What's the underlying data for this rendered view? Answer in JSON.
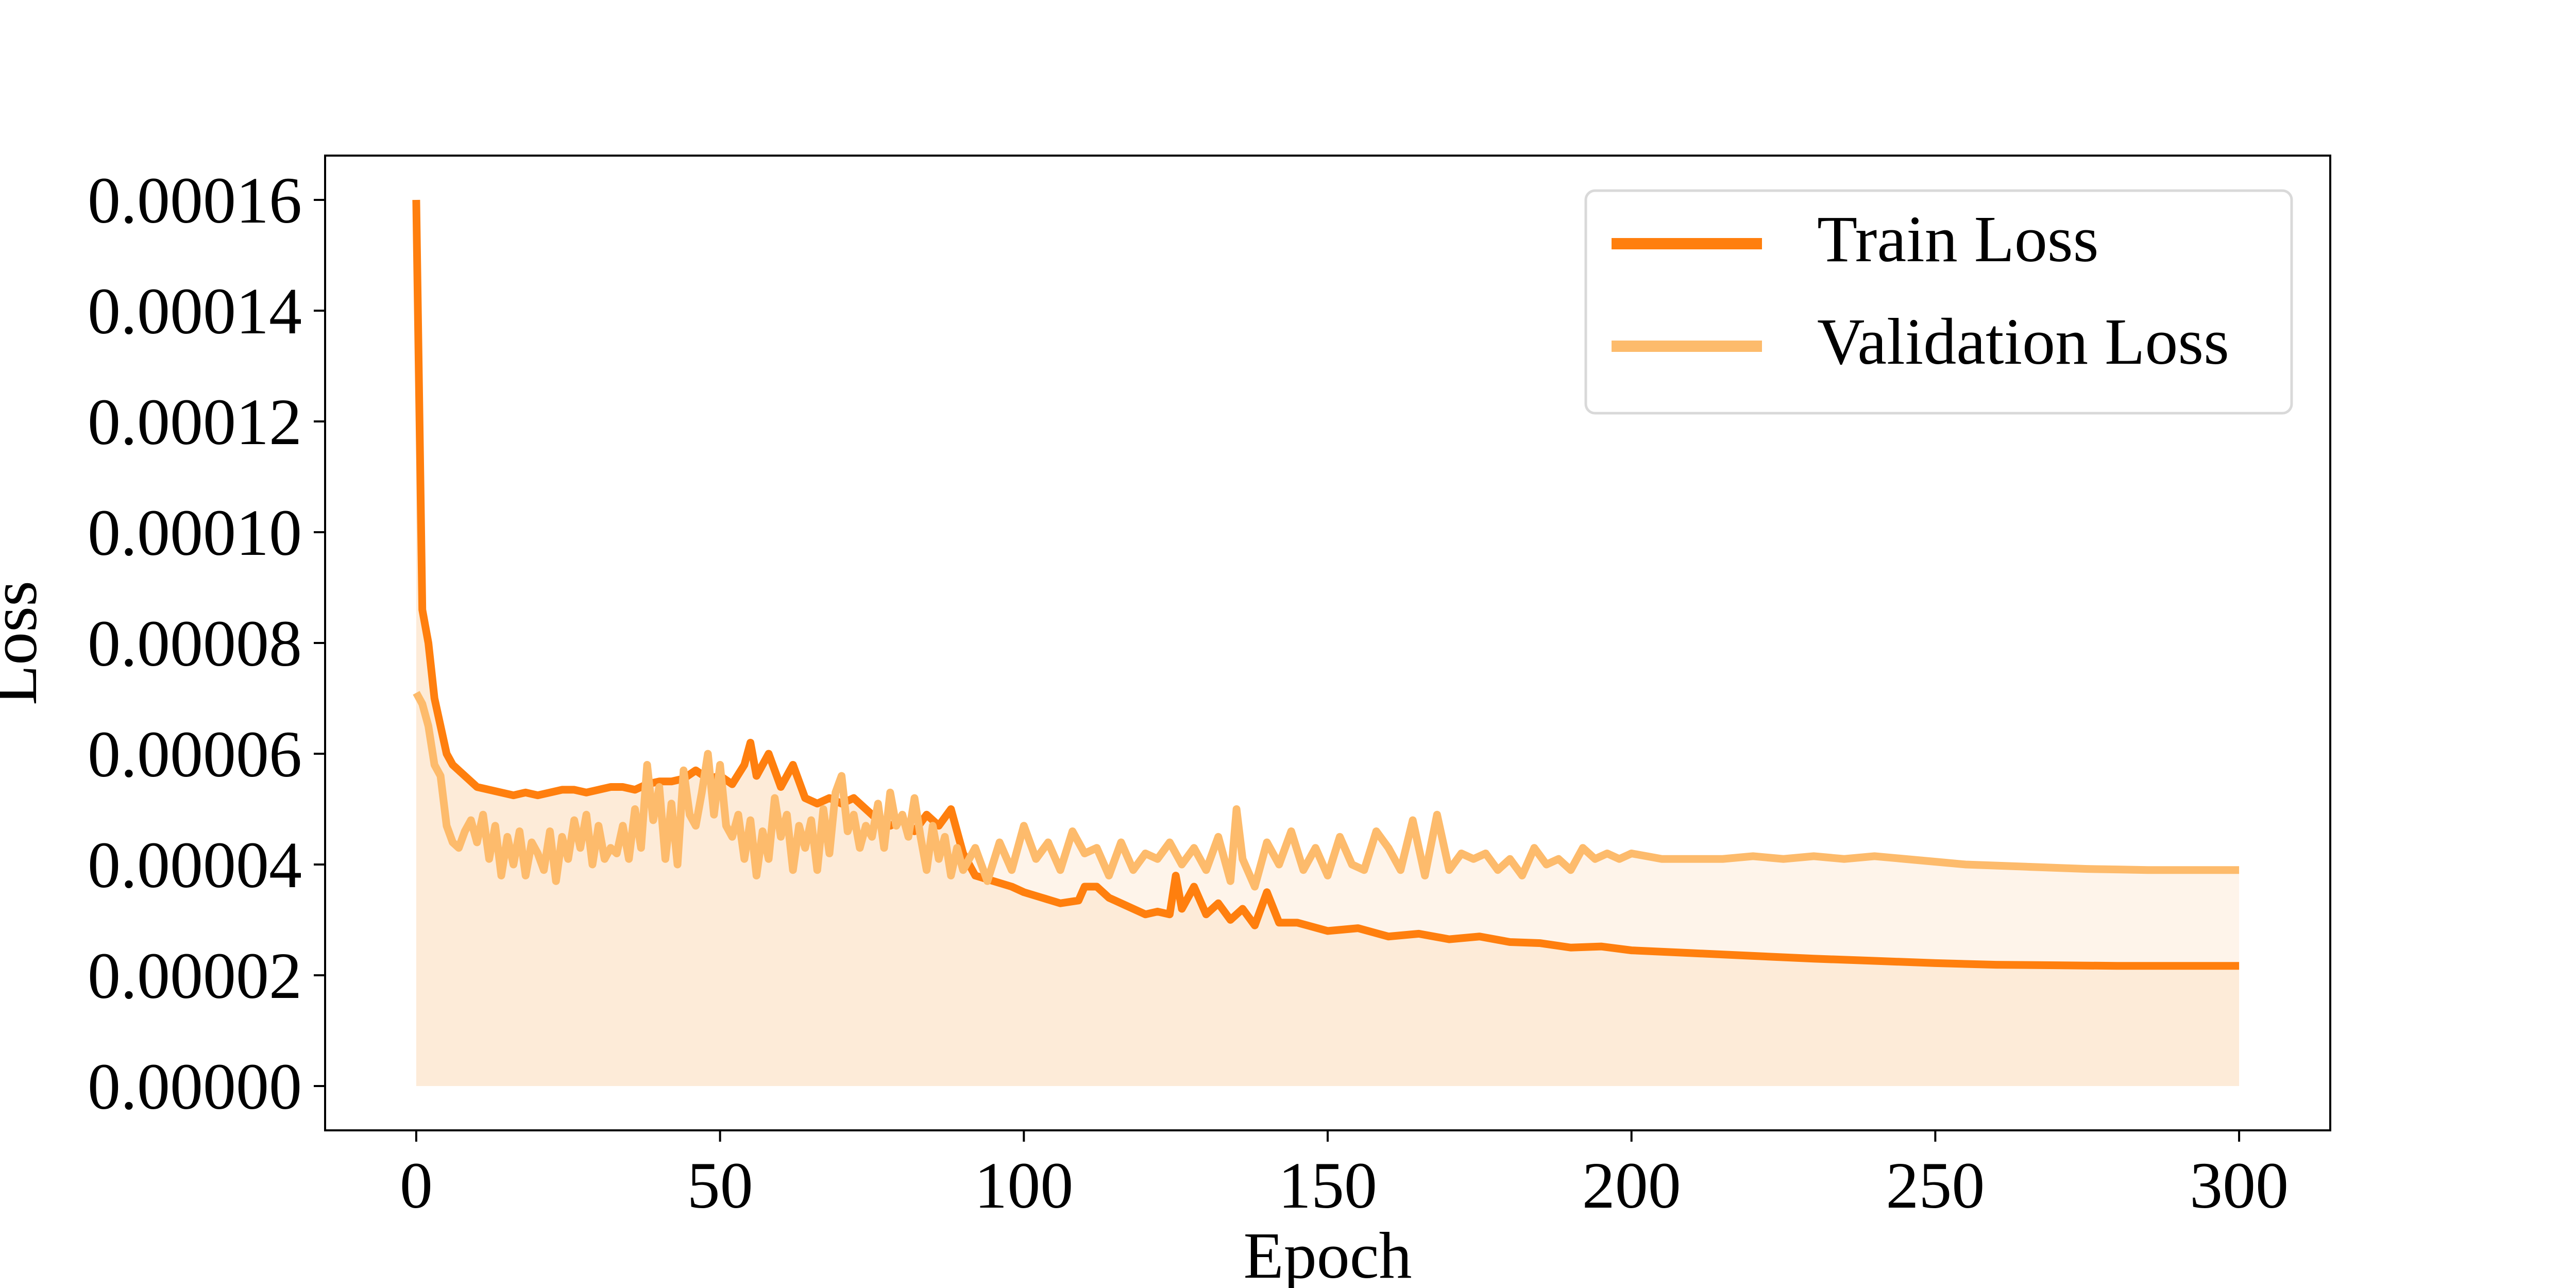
{
  "chart_data": {
    "type": "line",
    "title": "",
    "xlabel": "Epoch",
    "ylabel": "Loss",
    "xlim": [
      -15,
      315
    ],
    "ylim": [
      -8e-06,
      0.000168
    ],
    "xticks": [
      0,
      50,
      100,
      150,
      200,
      250,
      300
    ],
    "yticks": [
      0,
      2e-05,
      4e-05,
      6e-05,
      8e-05,
      0.0001,
      0.00012,
      0.00014,
      0.00016
    ],
    "xtick_labels": [
      "0",
      "50",
      "100",
      "150",
      "200",
      "250",
      "300"
    ],
    "ytick_labels": [
      "0.00000",
      "0.00002",
      "0.00004",
      "0.00006",
      "0.00008",
      "0.00010",
      "0.00012",
      "0.00014",
      "0.00016"
    ],
    "grid": false,
    "legend_position": "top-right",
    "series": [
      {
        "name": "Train Loss",
        "color": "#ff7f0e",
        "fill": "#fdebd8",
        "x": [
          0,
          1,
          2,
          3,
          4,
          5,
          6,
          7,
          8,
          9,
          10,
          12,
          14,
          16,
          18,
          20,
          22,
          24,
          26,
          28,
          30,
          32,
          34,
          36,
          38,
          40,
          42,
          44,
          46,
          48,
          50,
          52,
          54,
          55,
          56,
          58,
          60,
          62,
          64,
          66,
          68,
          70,
          72,
          74,
          76,
          78,
          80,
          82,
          84,
          86,
          88,
          90,
          92,
          95,
          98,
          100,
          103,
          106,
          109,
          110,
          112,
          114,
          116,
          118,
          120,
          122,
          124,
          125,
          126,
          128,
          130,
          132,
          134,
          136,
          138,
          140,
          142,
          145,
          150,
          155,
          160,
          165,
          170,
          175,
          180,
          185,
          190,
          195,
          200,
          210,
          220,
          230,
          240,
          250,
          260,
          270,
          280,
          290,
          300
        ],
        "y": [
          0.00016,
          8.6e-05,
          8e-05,
          7e-05,
          6.5e-05,
          6e-05,
          5.8e-05,
          5.7e-05,
          5.6e-05,
          5.5e-05,
          5.4e-05,
          5.35e-05,
          5.3e-05,
          5.25e-05,
          5.3e-05,
          5.25e-05,
          5.3e-05,
          5.35e-05,
          5.35e-05,
          5.3e-05,
          5.35e-05,
          5.4e-05,
          5.4e-05,
          5.35e-05,
          5.45e-05,
          5.5e-05,
          5.5e-05,
          5.55e-05,
          5.7e-05,
          5.55e-05,
          5.6e-05,
          5.45e-05,
          5.8e-05,
          6.2e-05,
          5.6e-05,
          6e-05,
          5.4e-05,
          5.8e-05,
          5.2e-05,
          5.1e-05,
          5.2e-05,
          5.1e-05,
          5.2e-05,
          5e-05,
          4.8e-05,
          4.7e-05,
          4.8e-05,
          4.6e-05,
          4.9e-05,
          4.7e-05,
          5e-05,
          4.2e-05,
          3.8e-05,
          3.7e-05,
          3.6e-05,
          3.5e-05,
          3.4e-05,
          3.3e-05,
          3.35e-05,
          3.6e-05,
          3.6e-05,
          3.4e-05,
          3.3e-05,
          3.2e-05,
          3.1e-05,
          3.15e-05,
          3.1e-05,
          3.8e-05,
          3.2e-05,
          3.6e-05,
          3.1e-05,
          3.3e-05,
          3e-05,
          3.2e-05,
          2.9e-05,
          3.5e-05,
          2.95e-05,
          2.95e-05,
          2.8e-05,
          2.85e-05,
          2.7e-05,
          2.75e-05,
          2.65e-05,
          2.7e-05,
          2.6e-05,
          2.58e-05,
          2.5e-05,
          2.52e-05,
          2.45e-05,
          2.4e-05,
          2.35e-05,
          2.3e-05,
          2.26e-05,
          2.22e-05,
          2.19e-05,
          2.18e-05,
          2.17e-05,
          2.17e-05,
          2.17e-05
        ]
      },
      {
        "name": "Validation Loss",
        "color": "#fdbb6c",
        "fill": "#fef4ea",
        "x": [
          0,
          1,
          2,
          3,
          4,
          5,
          6,
          7,
          8,
          9,
          10,
          11,
          12,
          13,
          14,
          15,
          16,
          17,
          18,
          19,
          20,
          21,
          22,
          23,
          24,
          25,
          26,
          27,
          28,
          29,
          30,
          31,
          32,
          33,
          34,
          35,
          36,
          37,
          38,
          39,
          40,
          41,
          42,
          43,
          44,
          45,
          46,
          47,
          48,
          49,
          50,
          51,
          52,
          53,
          54,
          55,
          56,
          57,
          58,
          59,
          60,
          61,
          62,
          63,
          64,
          65,
          66,
          67,
          68,
          69,
          70,
          71,
          72,
          73,
          74,
          75,
          76,
          77,
          78,
          79,
          80,
          81,
          82,
          83,
          84,
          85,
          86,
          87,
          88,
          89,
          90,
          92,
          94,
          96,
          98,
          100,
          102,
          104,
          106,
          108,
          110,
          112,
          114,
          116,
          118,
          120,
          122,
          124,
          126,
          128,
          130,
          132,
          134,
          135,
          136,
          138,
          140,
          142,
          144,
          146,
          148,
          150,
          152,
          154,
          156,
          158,
          160,
          162,
          164,
          166,
          168,
          170,
          172,
          174,
          176,
          178,
          180,
          182,
          184,
          186,
          188,
          190,
          192,
          194,
          196,
          198,
          200,
          205,
          210,
          215,
          220,
          225,
          230,
          235,
          240,
          245,
          250,
          255,
          260,
          265,
          270,
          275,
          280,
          285,
          290,
          295,
          300
        ],
        "y": [
          7.1e-05,
          6.9e-05,
          6.5e-05,
          5.8e-05,
          5.6e-05,
          4.7e-05,
          4.4e-05,
          4.3e-05,
          4.6e-05,
          4.8e-05,
          4.4e-05,
          4.9e-05,
          4.1e-05,
          4.7e-05,
          3.8e-05,
          4.5e-05,
          4e-05,
          4.6e-05,
          3.8e-05,
          4.4e-05,
          4.2e-05,
          3.9e-05,
          4.6e-05,
          3.7e-05,
          4.5e-05,
          4.1e-05,
          4.8e-05,
          4.3e-05,
          4.9e-05,
          4e-05,
          4.7e-05,
          4.1e-05,
          4.3e-05,
          4.2e-05,
          4.7e-05,
          4.1e-05,
          5e-05,
          4.3e-05,
          5.8e-05,
          4.8e-05,
          5.4e-05,
          4.1e-05,
          5.1e-05,
          4e-05,
          5.7e-05,
          4.9e-05,
          4.7e-05,
          5.3e-05,
          6e-05,
          4.9e-05,
          5.8e-05,
          4.7e-05,
          4.5e-05,
          4.9e-05,
          4.1e-05,
          4.8e-05,
          3.8e-05,
          4.6e-05,
          4.1e-05,
          5.2e-05,
          4.5e-05,
          4.9e-05,
          3.9e-05,
          4.7e-05,
          4.3e-05,
          4.8e-05,
          3.9e-05,
          5e-05,
          4.2e-05,
          5.3e-05,
          5.6e-05,
          4.6e-05,
          4.9e-05,
          4.3e-05,
          4.7e-05,
          4.5e-05,
          5.1e-05,
          4.3e-05,
          5.3e-05,
          4.7e-05,
          4.9e-05,
          4.5e-05,
          5.2e-05,
          4.5e-05,
          3.9e-05,
          4.7e-05,
          4.1e-05,
          4.5e-05,
          3.8e-05,
          4.3e-05,
          3.9e-05,
          4.3e-05,
          3.7e-05,
          4.4e-05,
          3.9e-05,
          4.7e-05,
          4.1e-05,
          4.4e-05,
          3.9e-05,
          4.6e-05,
          4.2e-05,
          4.3e-05,
          3.8e-05,
          4.4e-05,
          3.9e-05,
          4.2e-05,
          4.1e-05,
          4.4e-05,
          4e-05,
          4.3e-05,
          3.9e-05,
          4.5e-05,
          3.7e-05,
          5e-05,
          4.1e-05,
          3.6e-05,
          4.4e-05,
          4e-05,
          4.6e-05,
          3.9e-05,
          4.3e-05,
          3.8e-05,
          4.5e-05,
          4e-05,
          3.9e-05,
          4.6e-05,
          4.3e-05,
          3.9e-05,
          4.8e-05,
          3.8e-05,
          4.9e-05,
          3.9e-05,
          4.2e-05,
          4.1e-05,
          4.2e-05,
          3.9e-05,
          4.1e-05,
          3.8e-05,
          4.3e-05,
          4e-05,
          4.1e-05,
          3.9e-05,
          4.3e-05,
          4.1e-05,
          4.2e-05,
          4.1e-05,
          4.2e-05,
          4.1e-05,
          4.1e-05,
          4.1e-05,
          4.15e-05,
          4.1e-05,
          4.15e-05,
          4.1e-05,
          4.15e-05,
          4.1e-05,
          4.05e-05,
          4e-05,
          3.98e-05,
          3.96e-05,
          3.94e-05,
          3.92e-05,
          3.91e-05,
          3.9e-05,
          3.9e-05,
          3.9e-05,
          3.9e-05
        ]
      }
    ]
  }
}
